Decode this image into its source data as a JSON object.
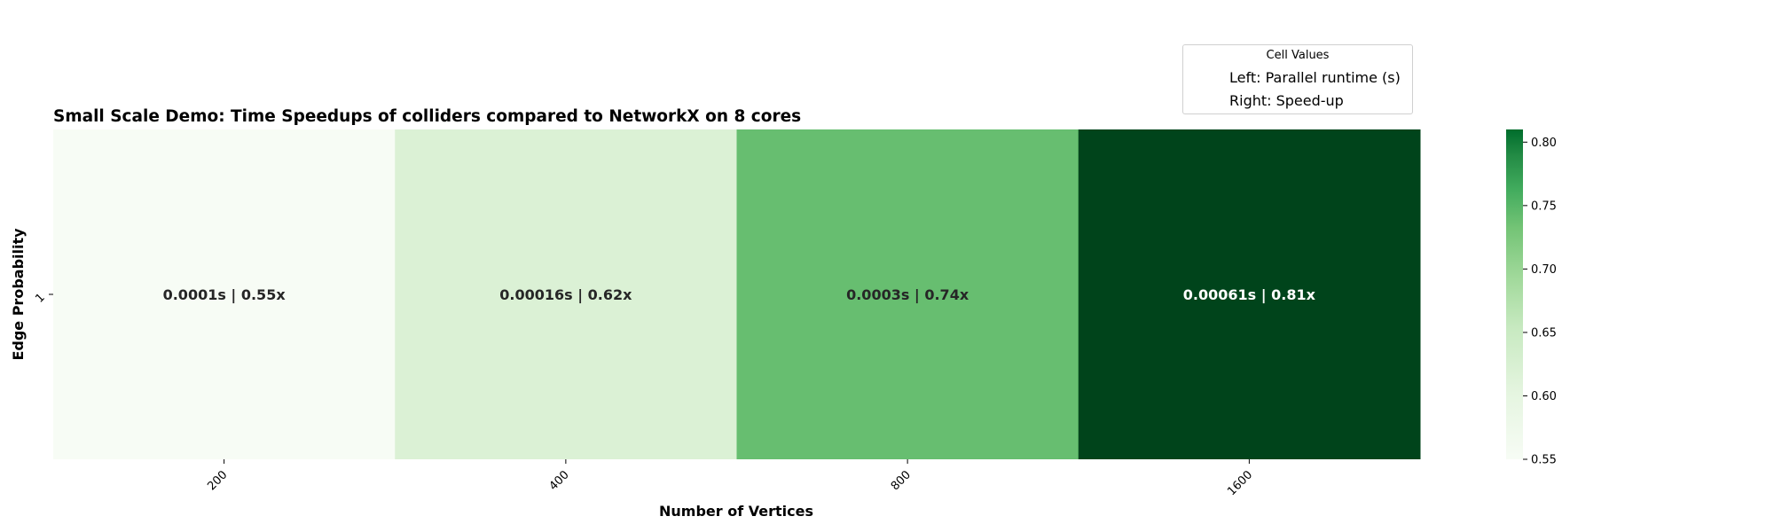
{
  "chart_data": {
    "type": "heatmap",
    "title": "Small Scale Demo: Time Speedups of colliders compared to NetworkX on 8 cores",
    "xlabel": "Number of Vertices",
    "ylabel": "Edge Probability",
    "x_categories": [
      "200",
      "400",
      "800",
      "1600"
    ],
    "y_categories": [
      "1"
    ],
    "cells": [
      {
        "x": "200",
        "y": "1",
        "runtime": "0.0001s",
        "speedup": 0.55,
        "label": "0.0001s | 0.55x"
      },
      {
        "x": "400",
        "y": "1",
        "runtime": "0.00016s",
        "speedup": 0.62,
        "label": "0.00016s | 0.62x"
      },
      {
        "x": "800",
        "y": "1",
        "runtime": "0.0003s",
        "speedup": 0.74,
        "label": "0.0003s | 0.74x"
      },
      {
        "x": "1600",
        "y": "1",
        "runtime": "0.00061s",
        "speedup": 0.81,
        "label": "0.00061s | 0.81x"
      }
    ],
    "colormap": "Greens",
    "colorbar": {
      "min": 0.55,
      "max": 0.81,
      "ticks": [
        "0.55",
        "0.60",
        "0.65",
        "0.70",
        "0.75",
        "0.80"
      ]
    },
    "legend": {
      "placement": "top-right",
      "title": "Cell Values",
      "entries": [
        "Left: Parallel runtime (s)",
        "Right: Speed-up"
      ]
    }
  }
}
